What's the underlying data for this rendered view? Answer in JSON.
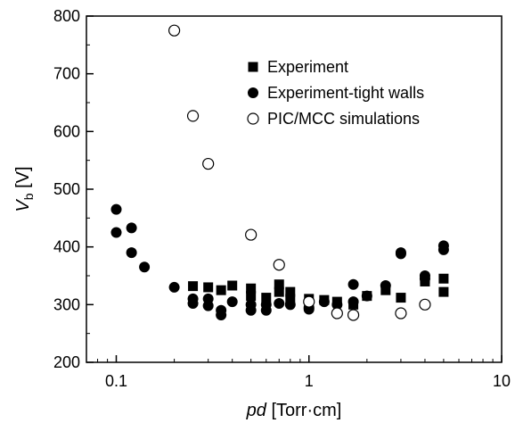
{
  "chart_data": {
    "type": "scatter",
    "xscale": "log",
    "xlim": [
      0.07,
      10
    ],
    "ylim": [
      200,
      800
    ],
    "grid": false,
    "legend_position": "top-right",
    "xlabel": {
      "italic": "pd",
      "rest": " [Torr·cm]"
    },
    "ylabel": {
      "main": "V",
      "sub": "b",
      "rest": " [V]"
    },
    "x_ticks": [
      {
        "value": 0.1,
        "label": "0.1"
      },
      {
        "value": 1,
        "label": "1"
      },
      {
        "value": 10,
        "label": "10"
      }
    ],
    "y_ticks": [
      {
        "value": 200,
        "label": "200"
      },
      {
        "value": 300,
        "label": "300"
      },
      {
        "value": 400,
        "label": "400"
      },
      {
        "value": 500,
        "label": "500"
      },
      {
        "value": 600,
        "label": "600"
      },
      {
        "value": 700,
        "label": "700"
      },
      {
        "value": 800,
        "label": "800"
      }
    ],
    "series": [
      {
        "name": "Experiment",
        "marker": "filled-square",
        "points": [
          [
            0.25,
            332
          ],
          [
            0.3,
            330
          ],
          [
            0.35,
            325
          ],
          [
            0.4,
            333
          ],
          [
            0.5,
            328
          ],
          [
            0.5,
            315
          ],
          [
            0.6,
            312
          ],
          [
            0.7,
            335
          ],
          [
            0.7,
            322
          ],
          [
            0.8,
            322
          ],
          [
            0.8,
            310
          ],
          [
            1.0,
            310
          ],
          [
            1.2,
            308
          ],
          [
            1.4,
            305
          ],
          [
            1.7,
            300
          ],
          [
            2.0,
            315
          ],
          [
            2.5,
            325
          ],
          [
            3.0,
            312
          ],
          [
            4.0,
            340
          ],
          [
            4.0,
            345
          ],
          [
            5.0,
            345
          ],
          [
            5.0,
            322
          ]
        ]
      },
      {
        "name": "Experiment-tight walls",
        "marker": "filled-circle",
        "points": [
          [
            0.1,
            465
          ],
          [
            0.1,
            425
          ],
          [
            0.12,
            433
          ],
          [
            0.12,
            390
          ],
          [
            0.14,
            365
          ],
          [
            0.2,
            330
          ],
          [
            0.25,
            310
          ],
          [
            0.25,
            302
          ],
          [
            0.3,
            310
          ],
          [
            0.3,
            298
          ],
          [
            0.35,
            290
          ],
          [
            0.35,
            282
          ],
          [
            0.4,
            305
          ],
          [
            0.5,
            300
          ],
          [
            0.5,
            290
          ],
          [
            0.6,
            300
          ],
          [
            0.6,
            290
          ],
          [
            0.7,
            302
          ],
          [
            0.8,
            300
          ],
          [
            1.0,
            295
          ],
          [
            1.0,
            292
          ],
          [
            1.2,
            305
          ],
          [
            1.4,
            300
          ],
          [
            1.7,
            335
          ],
          [
            1.7,
            305
          ],
          [
            2.0,
            315
          ],
          [
            2.5,
            333
          ],
          [
            3.0,
            390
          ],
          [
            3.0,
            388
          ],
          [
            4.0,
            350
          ],
          [
            4.0,
            345
          ],
          [
            5.0,
            402
          ],
          [
            5.0,
            395
          ]
        ]
      },
      {
        "name": "PIC/MCC simulations",
        "marker": "open-circle",
        "points": [
          [
            0.2,
            775
          ],
          [
            0.25,
            627
          ],
          [
            0.3,
            544
          ],
          [
            0.5,
            421
          ],
          [
            0.7,
            369
          ],
          [
            1.0,
            305
          ],
          [
            1.4,
            285
          ],
          [
            1.7,
            282
          ],
          [
            3.0,
            285
          ],
          [
            4.0,
            300
          ]
        ]
      }
    ]
  }
}
